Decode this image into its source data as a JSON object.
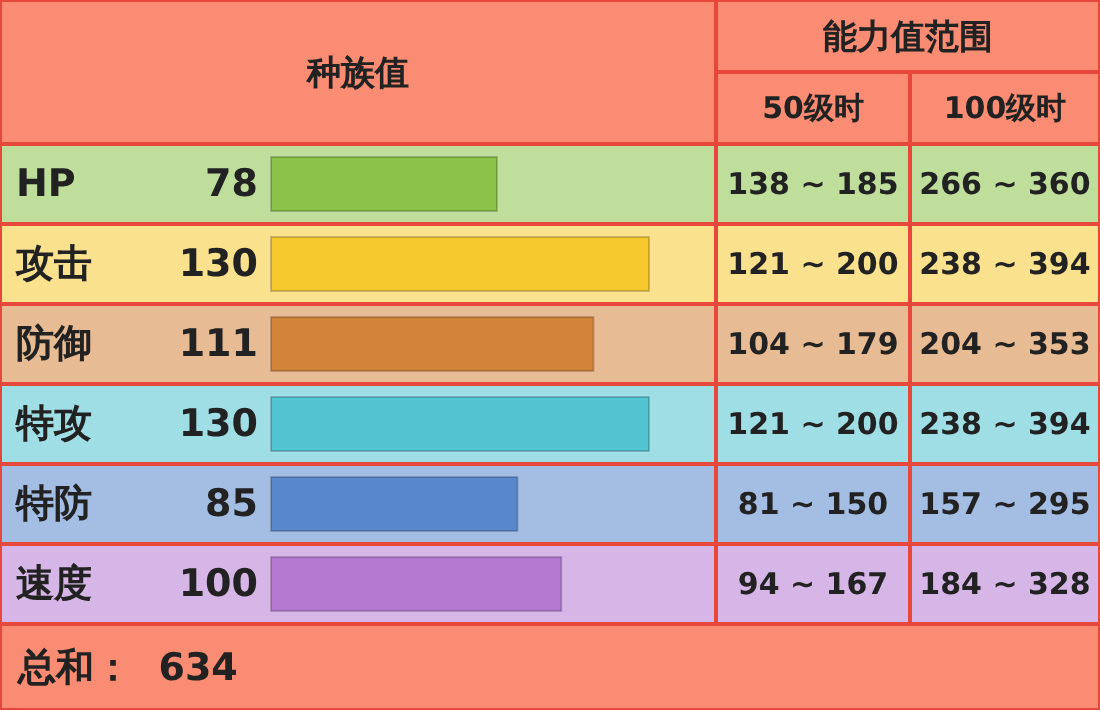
{
  "chart_data": {
    "type": "bar",
    "orientation": "horizontal",
    "title": "种族值",
    "categories": [
      "HP",
      "攻击",
      "防御",
      "特攻",
      "特防",
      "速度"
    ],
    "values": [
      78,
      130,
      111,
      130,
      85,
      100
    ],
    "colors": [
      "#8bc34a",
      "#f6c92f",
      "#d4843a",
      "#52c3d1",
      "#5887cc",
      "#b47ad2"
    ],
    "data_labels": true,
    "annotations": [
      "能力值范围",
      "50级时",
      "100级时",
      "138 ~ 185",
      "266 ~ 360",
      "121 ~ 200",
      "238 ~ 394",
      "104 ~ 179",
      "204 ~ 353",
      "121 ~ 200",
      "238 ~ 394",
      "81 ~ 150",
      "157 ~ 295",
      "94 ~ 167",
      "184 ~ 328",
      "总和：  634"
    ]
  }
}
